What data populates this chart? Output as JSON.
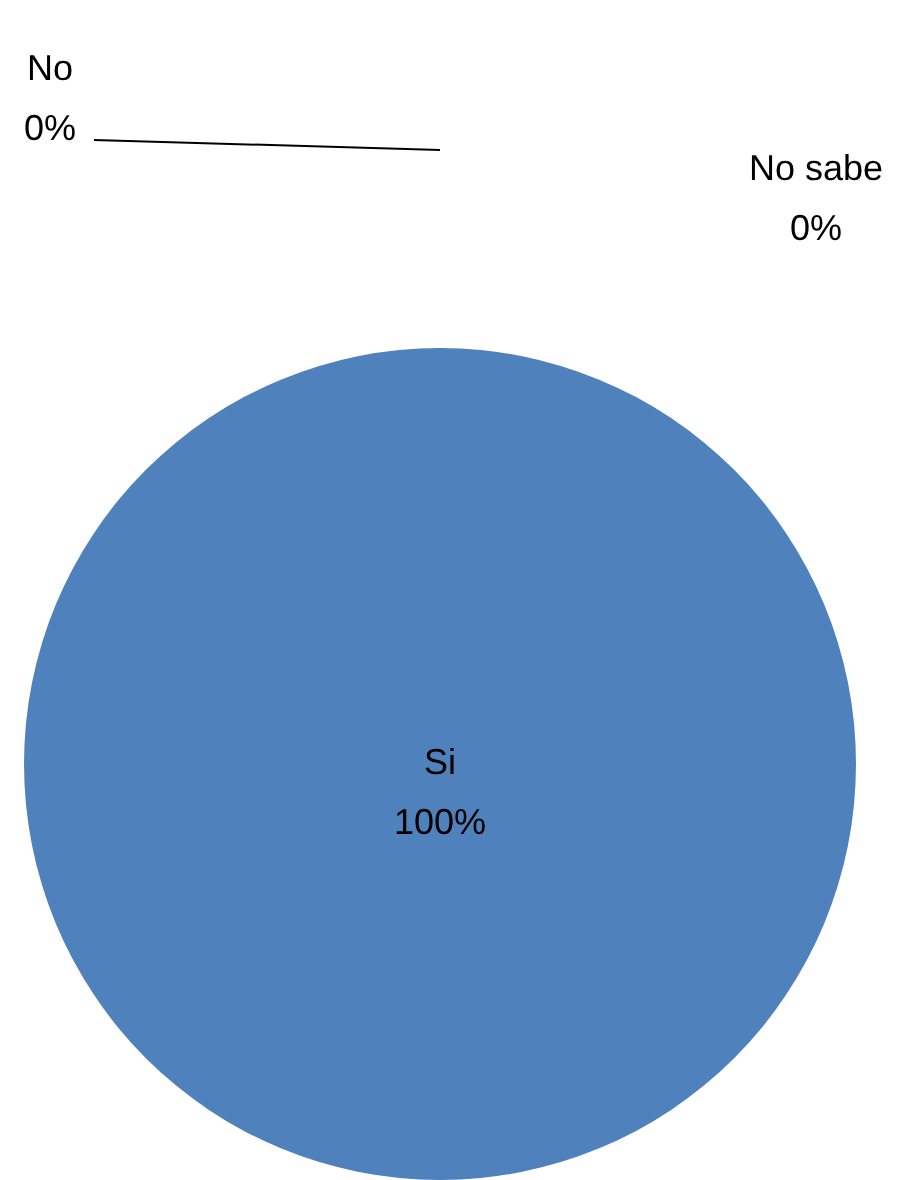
{
  "chart_data": {
    "type": "pie",
    "categories": [
      "Si",
      "No",
      "No sabe"
    ],
    "values": [
      100,
      0,
      0
    ],
    "colors": [
      "#4f81bd",
      "#c0504d",
      "#9bbb59"
    ],
    "value_labels": [
      "100%",
      "0%",
      "0%"
    ],
    "legend": false
  }
}
